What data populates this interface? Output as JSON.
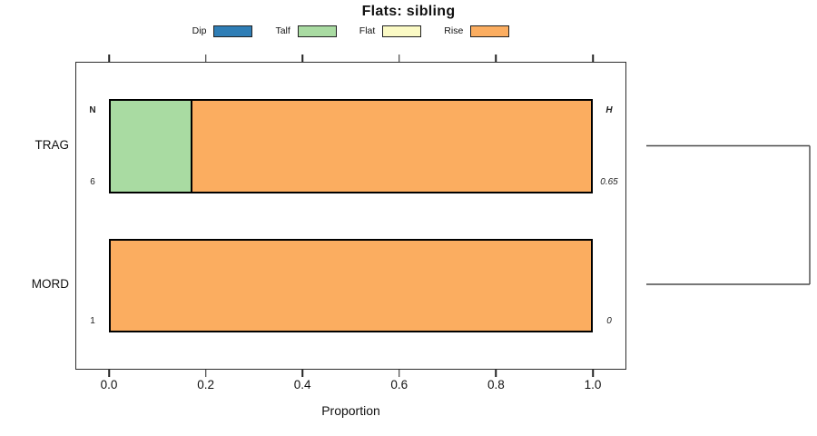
{
  "title": "Flats: sibling",
  "headers": {
    "n": "N",
    "h": "H"
  },
  "legend": {
    "items": [
      {
        "label": "Dip",
        "color": "#2F7EB6"
      },
      {
        "label": "Talf",
        "color": "#A9DBA2"
      },
      {
        "label": "Flat",
        "color": "#FBFAC5"
      },
      {
        "label": "Rise",
        "color": "#FBAD60"
      }
    ]
  },
  "chart_data": {
    "type": "bar",
    "subtype": "horizontal-stacked-proportion",
    "title": "Flats: sibling",
    "xlabel": "Proportion",
    "xlim": [
      0,
      1
    ],
    "x_ticks": [
      0,
      0.2,
      0.4,
      0.6,
      0.8,
      1
    ],
    "grid": false,
    "legend_position": "top",
    "series_labels": [
      "Dip",
      "Talf",
      "Flat",
      "Rise"
    ],
    "categories": [
      "TRAG",
      "MORD"
    ],
    "rows": [
      {
        "label": "TRAG",
        "n": "6",
        "h": "0.65",
        "segments": [
          {
            "name": "Dip",
            "value": 0
          },
          {
            "name": "Talf",
            "value": 0.1667
          },
          {
            "name": "Flat",
            "value": 0
          },
          {
            "name": "Rise",
            "value": 0.8333
          }
        ]
      },
      {
        "label": "MORD",
        "n": "1",
        "h": "0",
        "segments": [
          {
            "name": "Dip",
            "value": 0
          },
          {
            "name": "Talf",
            "value": 0
          },
          {
            "name": "Flat",
            "value": 0
          },
          {
            "name": "Rise",
            "value": 1
          }
        ]
      }
    ],
    "dendrogram": {
      "join": [
        "TRAG",
        "MORD"
      ]
    }
  }
}
